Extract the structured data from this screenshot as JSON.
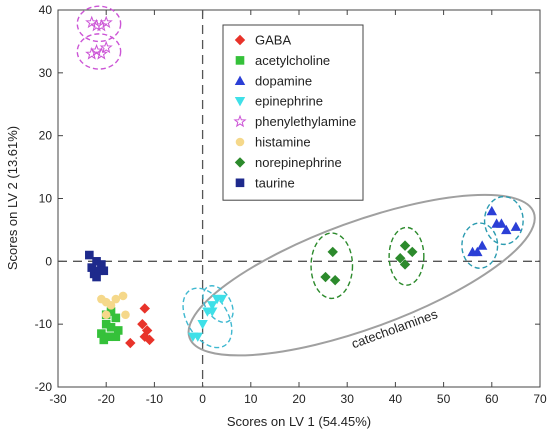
{
  "chart_data": {
    "type": "scatter",
    "xlabel": "Scores on LV 1 (54.45%)",
    "ylabel": "Scores on LV 2 (13.61%)",
    "xlim": [
      -30,
      70
    ],
    "ylim": [
      -20,
      40
    ],
    "x_ticks": [
      "-30",
      "-20",
      "-10",
      "0",
      "10",
      "20",
      "30",
      "40",
      "50",
      "60",
      "70"
    ],
    "y_ticks": [
      "-20",
      "-10",
      "0",
      "10",
      "20",
      "30",
      "40"
    ],
    "grid": false,
    "legend_position": "top-center",
    "annotation": "catecholamines",
    "series": [
      {
        "name": "GABA",
        "marker": "diamond",
        "color": "#e8332a",
        "points": [
          [
            -12,
            -7.5
          ],
          [
            -12.5,
            -10
          ],
          [
            -11.5,
            -11
          ],
          [
            -12,
            -12
          ],
          [
            -11,
            -12.5
          ],
          [
            -15,
            -13
          ]
        ]
      },
      {
        "name": "acetylcholine",
        "marker": "square",
        "color": "#35c13a",
        "points": [
          [
            -20,
            -8.5
          ],
          [
            -19,
            -8
          ],
          [
            -18,
            -9
          ],
          [
            -20,
            -10
          ],
          [
            -19,
            -10.5
          ],
          [
            -17.5,
            -11
          ],
          [
            -21,
            -11.5
          ],
          [
            -19.5,
            -12
          ],
          [
            -18,
            -12
          ],
          [
            -20.5,
            -12.5
          ]
        ]
      },
      {
        "name": "dopamine",
        "marker": "triangle-up",
        "color": "#2b3fd6",
        "points": [
          [
            60,
            8
          ],
          [
            61,
            6
          ],
          [
            62,
            6
          ],
          [
            63,
            5
          ],
          [
            65,
            5.5
          ],
          [
            56,
            1.5
          ],
          [
            57,
            1.5
          ],
          [
            58,
            2.5
          ]
        ]
      },
      {
        "name": "epinephrine",
        "marker": "triangle-down",
        "color": "#3fe0e8",
        "points": [
          [
            -2,
            -12
          ],
          [
            -1,
            -12
          ],
          [
            0,
            -10
          ],
          [
            1,
            -8
          ],
          [
            2,
            -7
          ],
          [
            3,
            -6
          ],
          [
            4,
            -6
          ],
          [
            2,
            -8
          ]
        ]
      },
      {
        "name": "phenylethylamine",
        "marker": "star",
        "color": "#cc55d6",
        "points": [
          [
            -23,
            38
          ],
          [
            -22,
            37.5
          ],
          [
            -20,
            38
          ],
          [
            -21,
            37.5
          ],
          [
            -23,
            33
          ],
          [
            -22,
            33.5
          ],
          [
            -20,
            34
          ],
          [
            -21,
            33
          ]
        ]
      },
      {
        "name": "histamine",
        "marker": "circle",
        "color": "#f5d88a",
        "points": [
          [
            -21,
            -6
          ],
          [
            -20,
            -6.5
          ],
          [
            -18,
            -6
          ],
          [
            -16.5,
            -5.5
          ],
          [
            -19,
            -7
          ],
          [
            -20,
            -8.5
          ],
          [
            -16,
            -8.5
          ]
        ]
      },
      {
        "name": "norepinephrine",
        "marker": "diamond",
        "color": "#2c8a2c",
        "points": [
          [
            27,
            1.5
          ],
          [
            25.5,
            -2.5
          ],
          [
            27.5,
            -3
          ],
          [
            41,
            0.5
          ],
          [
            42,
            2.5
          ],
          [
            43.5,
            1.5
          ],
          [
            42,
            -0.5
          ]
        ]
      },
      {
        "name": "taurine",
        "marker": "square",
        "color": "#1e2a8c",
        "points": [
          [
            -23.5,
            1
          ],
          [
            -22,
            0
          ],
          [
            -23,
            -1
          ],
          [
            -21,
            -0.5
          ],
          [
            -22.5,
            -2
          ],
          [
            -21.5,
            -1.5
          ],
          [
            -20.5,
            -1.5
          ],
          [
            -22,
            -2.5
          ]
        ]
      }
    ],
    "cluster_ellipses": [
      {
        "series": "phenylethylamine",
        "color": "#cc55d6",
        "cx": -21.5,
        "cy": 37.8,
        "rx": 4.5,
        "ry": 2.8
      },
      {
        "series": "phenylethylamine",
        "color": "#cc55d6",
        "cx": -21.5,
        "cy": 33.4,
        "rx": 4.5,
        "ry": 2.8
      },
      {
        "series": "epinephrine",
        "color": "#3fb8d0",
        "cx": 1,
        "cy": -9,
        "rx": 4.2,
        "ry": 5.2,
        "rot": -32
      },
      {
        "series": "epinephrine",
        "color": "#3fb8d0",
        "cx": 3.2,
        "cy": -6.8,
        "rx": 2.6,
        "ry": 3.2,
        "rot": -32
      },
      {
        "series": "norepinephrine",
        "color": "#2c8a2c",
        "cx": 26.8,
        "cy": -0.7,
        "rx": 4.3,
        "ry": 5.2
      },
      {
        "series": "norepinephrine",
        "color": "#2c8a2c",
        "cx": 42.3,
        "cy": 0.8,
        "rx": 3.6,
        "ry": 4.6
      },
      {
        "series": "dopamine",
        "color": "#2b9bb0",
        "cx": 62.5,
        "cy": 6.5,
        "rx": 4,
        "ry": 3.8
      },
      {
        "series": "dopamine",
        "color": "#2b9bb0",
        "cx": 57.5,
        "cy": 2.5,
        "rx": 3.7,
        "ry": 3.6
      }
    ],
    "catecholamine_ellipse": {
      "cx": 33,
      "cy": -2.2,
      "rx": 38,
      "ry": 8.5,
      "rot": -20
    }
  }
}
